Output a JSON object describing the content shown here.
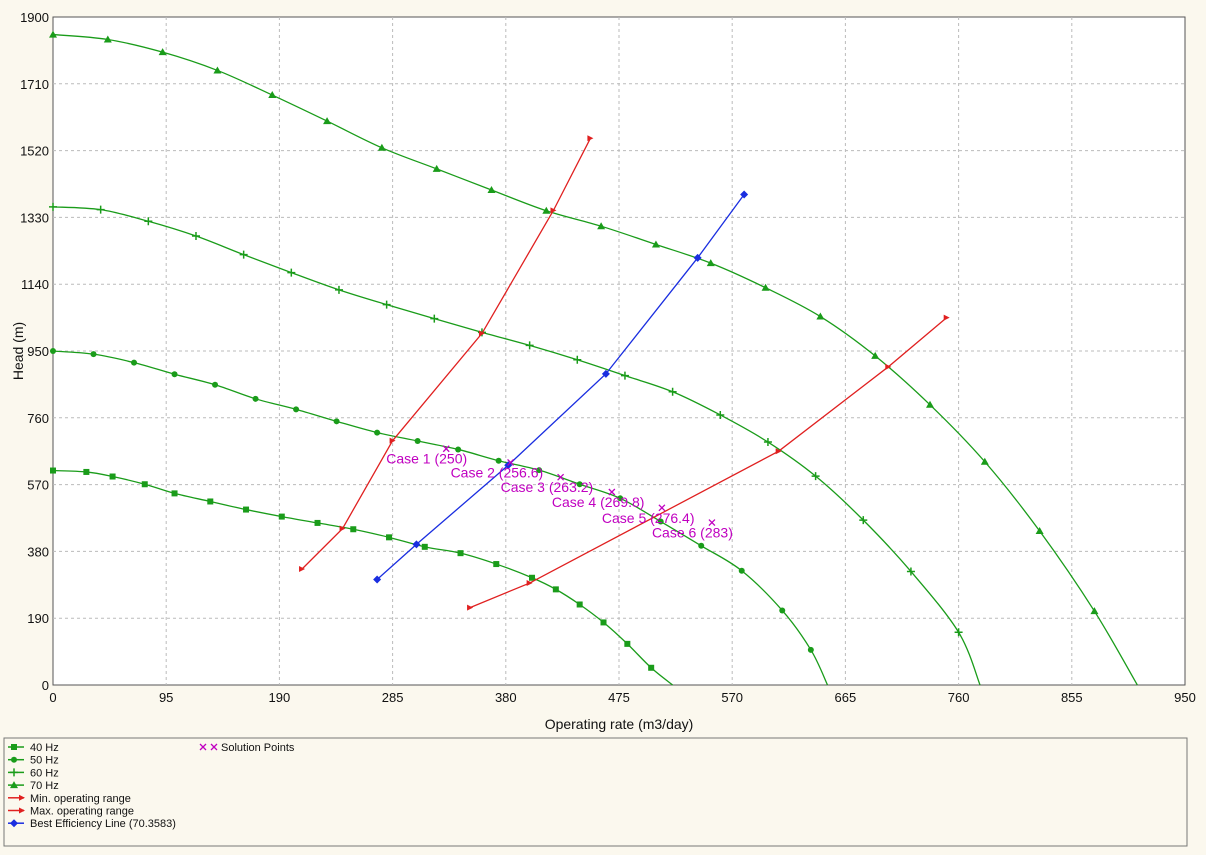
{
  "chart_data": {
    "type": "line",
    "xlabel": "Operating rate   (m3/day)",
    "ylabel": "Head  (m)",
    "xlim": [
      0,
      950
    ],
    "ylim": [
      0,
      1900
    ],
    "xticks": [
      "0",
      "95",
      "190",
      "285",
      "380",
      "475",
      "570",
      "665",
      "760",
      "855",
      "950"
    ],
    "yticks": [
      "0",
      "190",
      "380",
      "570",
      "760",
      "950",
      "1140",
      "1330",
      "1520",
      "1710",
      "1900"
    ],
    "grid": true,
    "legend_position": "bottom",
    "colors": {
      "pump_curves": "#1a9c1a",
      "operating_range": "#e02020",
      "best_efficiency": "#1a2ee0",
      "solution": "#c000c0"
    },
    "series": [
      {
        "name": "40 Hz",
        "color": "#1a9c1a",
        "marker": "square",
        "x": [
          0,
          28,
          50,
          77,
          102,
          132,
          162,
          192,
          222,
          252,
          282,
          312,
          342,
          372,
          402,
          422,
          442,
          462,
          482,
          502,
          520
        ],
        "y": [
          610,
          606,
          593,
          571,
          545,
          522,
          499,
          479,
          461,
          443,
          420,
          393,
          375,
          344,
          305,
          272,
          229,
          178,
          117,
          49,
          0
        ]
      },
      {
        "name": "50 Hz",
        "color": "#1a9c1a",
        "marker": "circle",
        "x": [
          0,
          34,
          68,
          102,
          136,
          170,
          204,
          238,
          272,
          306,
          340,
          374,
          408,
          442,
          476,
          510,
          544,
          578,
          612,
          636,
          650
        ],
        "y": [
          950,
          941,
          917,
          884,
          854,
          814,
          784,
          750,
          718,
          694,
          670,
          638,
          611,
          571,
          531,
          465,
          396,
          325,
          212,
          100,
          0
        ]
      },
      {
        "name": "60 Hz",
        "color": "#1a9c1a",
        "marker": "plus",
        "x": [
          0,
          40,
          80,
          120,
          160,
          200,
          240,
          280,
          320,
          360,
          400,
          440,
          480,
          520,
          560,
          600,
          640,
          680,
          720,
          760,
          778
        ],
        "y": [
          1360,
          1352,
          1319,
          1277,
          1224,
          1173,
          1124,
          1082,
          1042,
          1003,
          966,
          925,
          880,
          834,
          768,
          691,
          594,
          469,
          323,
          150,
          0
        ]
      },
      {
        "name": "70 Hz",
        "color": "#1a9c1a",
        "marker": "triangle",
        "x": [
          0,
          46,
          92,
          138,
          184,
          230,
          276,
          322,
          368,
          414,
          460,
          506,
          552,
          598,
          644,
          690,
          736,
          782,
          828,
          874,
          910
        ],
        "y": [
          1850,
          1836,
          1800,
          1748,
          1678,
          1604,
          1528,
          1468,
          1408,
          1349,
          1305,
          1253,
          1200,
          1130,
          1048,
          936,
          797,
          635,
          438,
          210,
          0
        ]
      },
      {
        "name": "Min. operating range",
        "color": "#e02020",
        "marker": "arrow",
        "x": [
          209,
          243,
          285,
          360,
          420,
          451
        ],
        "y": [
          330,
          445,
          695,
          1000,
          1350,
          1555
        ]
      },
      {
        "name": "Max. operating range",
        "color": "#e02020",
        "marker": "arrow",
        "x": [
          350,
          400,
          609,
          701,
          750
        ],
        "y": [
          220,
          290,
          665,
          905,
          1045
        ]
      },
      {
        "name": "Best Efficiency Line (70.3583)",
        "color": "#1a2ee0",
        "marker": "diamond",
        "x": [
          272,
          305,
          382,
          464,
          541,
          580
        ],
        "y": [
          300,
          400,
          625,
          885,
          1215,
          1395
        ]
      }
    ],
    "solution_points": {
      "name": "Solution Points",
      "color": "#c000c0",
      "points": [
        {
          "x": 330,
          "y": 672,
          "label": "Case 1 (250)"
        },
        {
          "x": 384,
          "y": 633,
          "label": "Case 2 (256.6)"
        },
        {
          "x": 426,
          "y": 591,
          "label": "Case 3 (263.2)"
        },
        {
          "x": 469,
          "y": 549,
          "label": "Case 4 (269.8)"
        },
        {
          "x": 511,
          "y": 504,
          "label": "Case 5 (276.4)"
        },
        {
          "x": 553,
          "y": 462,
          "label": "Case 6 (283)"
        }
      ]
    }
  }
}
